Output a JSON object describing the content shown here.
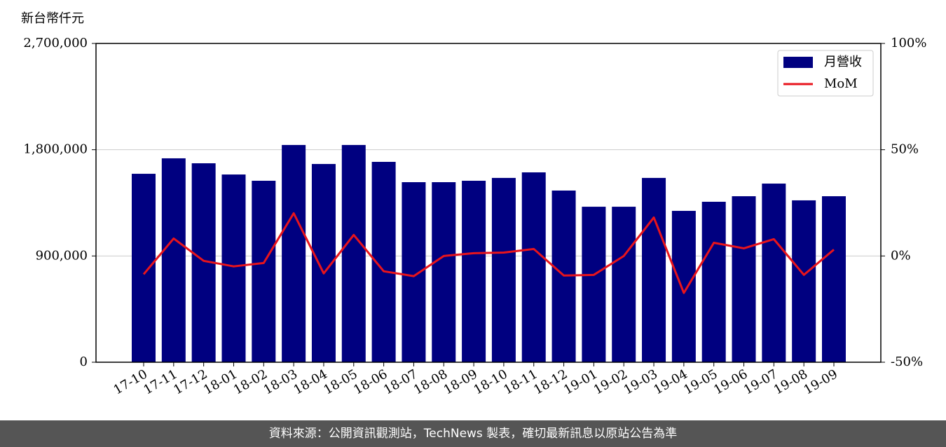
{
  "chart_data": {
    "type": "bar_line",
    "y_label": "新台幣仟元",
    "categories": [
      "17-10",
      "17-11",
      "17-12",
      "18-01",
      "18-02",
      "18-03",
      "18-04",
      "18-05",
      "18-06",
      "18-07",
      "18-08",
      "18-09",
      "18-10",
      "18-11",
      "18-12",
      "19-01",
      "19-02",
      "19-03",
      "19-04",
      "19-05",
      "19-06",
      "19-07",
      "19-08",
      "19-09"
    ],
    "series": [
      {
        "name": "月營收",
        "color": "#000080",
        "type": "bar",
        "values": [
          1596000,
          1727000,
          1685000,
          1590000,
          1537000,
          1840000,
          1679000,
          1840000,
          1697000,
          1525000,
          1525000,
          1537000,
          1561000,
          1608000,
          1454000,
          1317000,
          1317000,
          1561000,
          1282000,
          1359000,
          1406000,
          1513000,
          1371000,
          1406000
        ]
      },
      {
        "name": "MoM",
        "color": "#e8141c",
        "type": "line",
        "axis": "y2",
        "values": [
          -8.6,
          8.2,
          -2.3,
          -4.9,
          -3.3,
          20.1,
          -8.2,
          9.9,
          -7.2,
          -9.5,
          0,
          1.3,
          1.6,
          3.3,
          -9.2,
          -8.9,
          0,
          18.1,
          -17.4,
          6.2,
          3.6,
          7.9,
          -8.9,
          3.0
        ]
      }
    ],
    "ylim": [
      0,
      2700000
    ],
    "yticks": [
      0,
      {
        "value": 900000,
        "label": "900,000"
      },
      {
        "value": 1800000,
        "label": "1,800,000"
      },
      {
        "value": 2700000,
        "label": "2,700,000"
      }
    ],
    "y2lim": [
      -50,
      100
    ],
    "y2ticks": [
      {
        "value": -50,
        "label": "-50%"
      },
      {
        "value": 0,
        "label": "0%"
      },
      {
        "value": 50,
        "label": "50%"
      },
      {
        "value": 100,
        "label": "100%"
      }
    ],
    "grid": true,
    "legend": "upper right"
  },
  "footer": "資料來源：公開資訊觀測站，TechNews 製表，確切最新訊息以原站公告為準"
}
